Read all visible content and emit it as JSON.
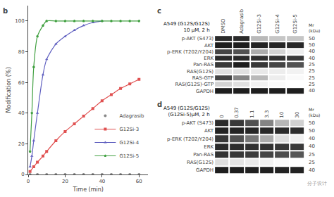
{
  "chart_data": [
    {
      "type": "line",
      "annotations": [
        "b"
      ],
      "xlabel": "Time (min)",
      "ylabel": "Modification (%)",
      "xlim": [
        0,
        65
      ],
      "ylim": [
        0,
        110
      ],
      "xticks": [
        0,
        20,
        40,
        60
      ],
      "yticks": [
        0,
        20,
        40,
        60,
        80,
        100
      ],
      "grid": false,
      "legend": "lower right",
      "series": [
        {
          "name": "Adagrasib",
          "type": "scatter",
          "color": "#888888",
          "marker": "circle",
          "x": [
            1,
            5,
            10,
            15,
            20,
            25,
            30,
            35,
            40,
            45,
            50,
            55,
            60
          ],
          "values": [
            0,
            0,
            0,
            0,
            0,
            0,
            0,
            0,
            0,
            0,
            0,
            0,
            0
          ]
        },
        {
          "name": "G12Si-3",
          "type": "line",
          "color": "#e05050",
          "marker": "square",
          "x": [
            1,
            3,
            5,
            8,
            10,
            15,
            20,
            25,
            30,
            35,
            40,
            45,
            50,
            55,
            60
          ],
          "values": [
            2,
            5,
            8,
            12,
            15,
            22,
            28,
            33,
            38,
            43,
            48,
            52,
            56,
            59,
            62
          ]
        },
        {
          "name": "G12Si-4",
          "type": "line",
          "color": "#6060c0",
          "marker": "triangle-up",
          "x": [
            1,
            2,
            3,
            5,
            8,
            10,
            15,
            20,
            25,
            30,
            35,
            40
          ],
          "values": [
            5,
            12,
            22,
            40,
            65,
            75,
            85,
            90,
            94,
            97,
            99,
            100
          ]
        },
        {
          "name": "G12Si-5",
          "type": "line",
          "color": "#40a040",
          "marker": "pentagon",
          "x": [
            1,
            2,
            3,
            5,
            8,
            10,
            15,
            20,
            25,
            30,
            35,
            40,
            45,
            50,
            55,
            60
          ],
          "values": [
            15,
            40,
            70,
            90,
            97,
            100,
            100,
            100,
            100,
            100,
            100,
            100,
            100,
            100,
            100,
            100
          ]
        }
      ]
    },
    {
      "type": "heatmap",
      "annotations": [
        "c"
      ],
      "title": "A549",
      "subtitle": "(G12S/G12S)",
      "xlabel": "10 μM, 2 h",
      "x": [
        "DMSO",
        "Adagrasib",
        "G12Si-3",
        "G12Si-4",
        "G12Si-5"
      ],
      "y": [
        "p-AKT (S473)",
        "AKT",
        "p-ERK (T202/Y204)",
        "ERK",
        "Pan-RAS",
        "RAS(G12S)",
        "RAS-GTP",
        "RAS(G12S)-GTP",
        "GAPDH"
      ],
      "mw_label": "Mr\n(kDa)",
      "mw": [
        50,
        50,
        40,
        40,
        25,
        25,
        25,
        25,
        40
      ],
      "values": [
        [
          0.85,
          0.85,
          0.3,
          0.25,
          0.25
        ],
        [
          0.9,
          0.9,
          0.88,
          0.87,
          0.86
        ],
        [
          0.75,
          0.7,
          0.35,
          0.2,
          0.1
        ],
        [
          0.85,
          0.85,
          0.83,
          0.82,
          0.8
        ],
        [
          0.8,
          0.9,
          0.8,
          0.75,
          0.7
        ],
        [
          0.15,
          0.15,
          0.12,
          0.1,
          0.08
        ],
        [
          0.75,
          0.5,
          0.3,
          0.1,
          0.05
        ],
        [
          0.2,
          0.15,
          0.08,
          0.05,
          0.03
        ],
        [
          0.9,
          0.9,
          0.9,
          0.9,
          0.9
        ]
      ]
    },
    {
      "type": "heatmap",
      "annotations": [
        "d",
        "分子设计"
      ],
      "title": "A549",
      "subtitle": "(G12S/G12S)",
      "xlabel": "(G12Si-5)μM, 2 h",
      "x": [
        "0",
        "0.37",
        "1.1",
        "3.3",
        "10",
        "30"
      ],
      "y": [
        "p-AKT (S473)",
        "AKT",
        "p-ERK (T202/Y204)",
        "ERK",
        "Pan-RAS",
        "RAS(G12S)",
        "GAPDH"
      ],
      "mw_label": "Mr\n(kDa)",
      "mw": [
        50,
        50,
        40,
        40,
        25,
        25,
        40
      ],
      "values": [
        [
          0.85,
          0.8,
          0.7,
          0.5,
          0.3,
          0.2
        ],
        [
          0.88,
          0.88,
          0.87,
          0.86,
          0.85,
          0.84
        ],
        [
          0.8,
          0.7,
          0.55,
          0.35,
          0.15,
          0.08
        ],
        [
          0.85,
          0.84,
          0.83,
          0.82,
          0.8,
          0.79
        ],
        [
          0.82,
          0.8,
          0.78,
          0.75,
          0.72,
          0.68
        ],
        [
          0.15,
          0.13,
          0.1,
          0.07,
          0.04,
          0.02
        ],
        [
          0.9,
          0.9,
          0.89,
          0.89,
          0.88,
          0.88
        ]
      ]
    }
  ]
}
